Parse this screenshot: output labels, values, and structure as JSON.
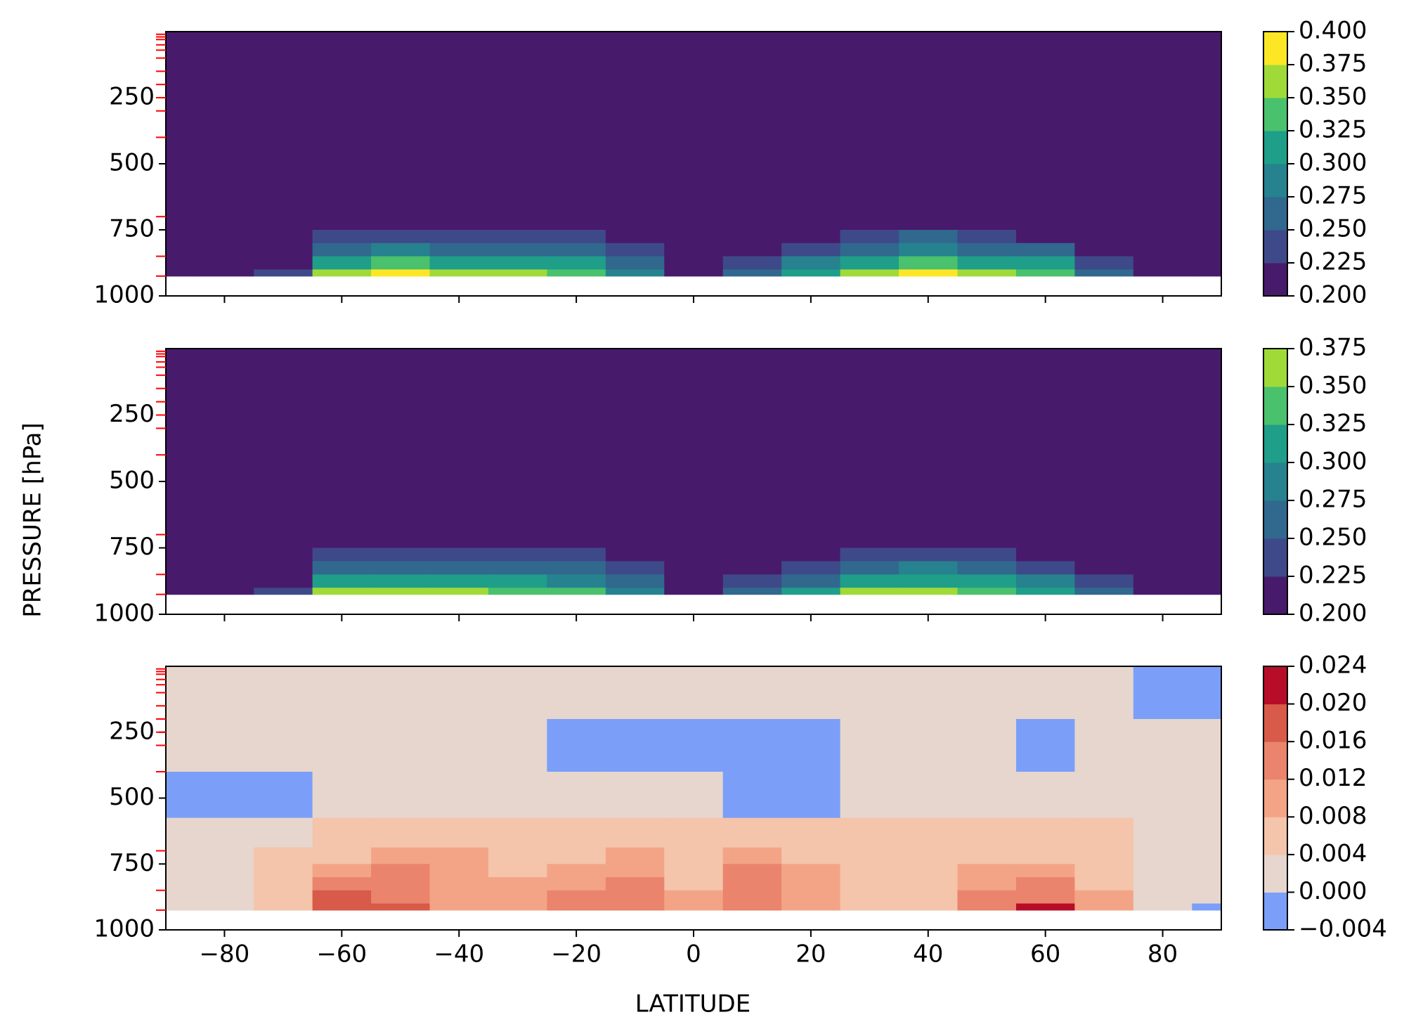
{
  "chart_data": [
    {
      "type": "contourf",
      "x": [
        -90,
        -80,
        -70,
        -60,
        -50,
        -40,
        -30,
        -20,
        -10,
        0,
        10,
        20,
        30,
        40,
        50,
        60,
        70,
        80,
        90
      ],
      "y": [
        100,
        300,
        500,
        650,
        725,
        775,
        825,
        875,
        925
      ],
      "z": [
        [
          0.2,
          0.2,
          0.2,
          0.2,
          0.2,
          0.2,
          0.2,
          0.2,
          0.2,
          0.2,
          0.2,
          0.2,
          0.2,
          0.2,
          0.2,
          0.2,
          0.2,
          0.2,
          0.2
        ],
        [
          0.2,
          0.2,
          0.2,
          0.2,
          0.2,
          0.2,
          0.2,
          0.2,
          0.2,
          0.2,
          0.2,
          0.2,
          0.2,
          0.2,
          0.2,
          0.2,
          0.2,
          0.2,
          0.2
        ],
        [
          0.2,
          0.2,
          0.2,
          0.2,
          0.2,
          0.2,
          0.2,
          0.2,
          0.2,
          0.2,
          0.2,
          0.2,
          0.2,
          0.2,
          0.2,
          0.2,
          0.2,
          0.2,
          0.2
        ],
        [
          0.2,
          0.2,
          0.2,
          0.2,
          0.2,
          0.2,
          0.2,
          0.2,
          0.2,
          0.2,
          0.2,
          0.2,
          0.2,
          0.2,
          0.2,
          0.2,
          0.2,
          0.2,
          0.2
        ],
        [
          0.2,
          0.2,
          0.2,
          0.21,
          0.21,
          0.21,
          0.21,
          0.21,
          0.2,
          0.2,
          0.2,
          0.21,
          0.21,
          0.21,
          0.21,
          0.21,
          0.2,
          0.2,
          0.2
        ],
        [
          0.2,
          0.2,
          0.2,
          0.23,
          0.24,
          0.24,
          0.23,
          0.23,
          0.22,
          0.2,
          0.21,
          0.22,
          0.24,
          0.25,
          0.23,
          0.22,
          0.21,
          0.2,
          0.2
        ],
        [
          0.2,
          0.2,
          0.21,
          0.26,
          0.28,
          0.27,
          0.26,
          0.26,
          0.24,
          0.21,
          0.22,
          0.24,
          0.27,
          0.29,
          0.27,
          0.25,
          0.22,
          0.21,
          0.2
        ],
        [
          0.2,
          0.2,
          0.22,
          0.31,
          0.33,
          0.32,
          0.31,
          0.3,
          0.26,
          0.22,
          0.24,
          0.28,
          0.32,
          0.34,
          0.32,
          0.3,
          0.24,
          0.21,
          0.2
        ],
        [
          0.2,
          0.2,
          0.23,
          0.37,
          0.39,
          0.37,
          0.35,
          0.34,
          0.29,
          0.22,
          0.26,
          0.31,
          0.37,
          0.39,
          0.37,
          0.34,
          0.26,
          0.21,
          0.2
        ]
      ],
      "levels": [
        {
          "value": 0.2,
          "label": "0.200"
        },
        {
          "value": 0.225,
          "label": "0.225"
        },
        {
          "value": 0.25,
          "label": "0.250"
        },
        {
          "value": 0.275,
          "label": "0.275"
        },
        {
          "value": 0.3,
          "label": "0.300"
        },
        {
          "value": 0.325,
          "label": "0.325"
        },
        {
          "value": 0.35,
          "label": "0.350"
        },
        {
          "value": 0.375,
          "label": "0.375"
        },
        {
          "value": 0.4,
          "label": "0.400"
        }
      ],
      "colors": [
        "#481a6c",
        "#3e4989",
        "#31688e",
        "#26828e",
        "#1f9e89",
        "#4ac16d",
        "#a0da39",
        "#fde725"
      ],
      "xlim": [
        -90,
        90
      ],
      "ylim": [
        1000,
        0
      ],
      "yticks": [
        250,
        500,
        750,
        1000
      ],
      "pressure_levels": [
        10,
        20,
        30,
        50,
        70,
        100,
        150,
        200,
        250,
        300,
        400,
        700,
        850,
        925
      ],
      "pressure_level_color": "#ff0000"
    },
    {
      "type": "contourf",
      "x": [
        -90,
        -80,
        -70,
        -60,
        -50,
        -40,
        -30,
        -20,
        -10,
        0,
        10,
        20,
        30,
        40,
        50,
        60,
        70,
        80,
        90
      ],
      "y": [
        100,
        300,
        500,
        650,
        725,
        775,
        825,
        875,
        925
      ],
      "z": [
        [
          0.2,
          0.2,
          0.2,
          0.2,
          0.2,
          0.2,
          0.2,
          0.2,
          0.2,
          0.2,
          0.2,
          0.2,
          0.2,
          0.2,
          0.2,
          0.2,
          0.2,
          0.2,
          0.2
        ],
        [
          0.2,
          0.2,
          0.2,
          0.2,
          0.2,
          0.2,
          0.2,
          0.2,
          0.2,
          0.2,
          0.2,
          0.2,
          0.2,
          0.2,
          0.2,
          0.2,
          0.2,
          0.2,
          0.2
        ],
        [
          0.2,
          0.2,
          0.2,
          0.2,
          0.2,
          0.2,
          0.2,
          0.2,
          0.2,
          0.2,
          0.2,
          0.2,
          0.2,
          0.2,
          0.2,
          0.2,
          0.2,
          0.2,
          0.2
        ],
        [
          0.2,
          0.2,
          0.2,
          0.2,
          0.2,
          0.2,
          0.2,
          0.2,
          0.2,
          0.2,
          0.2,
          0.2,
          0.2,
          0.2,
          0.2,
          0.2,
          0.2,
          0.2,
          0.2
        ],
        [
          0.2,
          0.2,
          0.2,
          0.21,
          0.21,
          0.21,
          0.21,
          0.21,
          0.2,
          0.2,
          0.2,
          0.21,
          0.21,
          0.21,
          0.21,
          0.21,
          0.2,
          0.2,
          0.2
        ],
        [
          0.2,
          0.2,
          0.2,
          0.23,
          0.24,
          0.24,
          0.23,
          0.23,
          0.22,
          0.2,
          0.21,
          0.22,
          0.24,
          0.24,
          0.23,
          0.22,
          0.21,
          0.2,
          0.2
        ],
        [
          0.2,
          0.2,
          0.21,
          0.26,
          0.27,
          0.27,
          0.26,
          0.25,
          0.23,
          0.21,
          0.22,
          0.24,
          0.27,
          0.28,
          0.26,
          0.24,
          0.22,
          0.21,
          0.2
        ],
        [
          0.2,
          0.2,
          0.22,
          0.3,
          0.32,
          0.31,
          0.3,
          0.29,
          0.25,
          0.21,
          0.23,
          0.27,
          0.31,
          0.32,
          0.3,
          0.28,
          0.23,
          0.21,
          0.2
        ],
        [
          0.2,
          0.2,
          0.23,
          0.35,
          0.36,
          0.36,
          0.34,
          0.33,
          0.28,
          0.21,
          0.25,
          0.3,
          0.35,
          0.36,
          0.34,
          0.32,
          0.25,
          0.21,
          0.2
        ]
      ],
      "levels": [
        {
          "value": 0.2,
          "label": "0.200"
        },
        {
          "value": 0.225,
          "label": "0.225"
        },
        {
          "value": 0.25,
          "label": "0.250"
        },
        {
          "value": 0.275,
          "label": "0.275"
        },
        {
          "value": 0.3,
          "label": "0.300"
        },
        {
          "value": 0.325,
          "label": "0.325"
        },
        {
          "value": 0.35,
          "label": "0.350"
        },
        {
          "value": 0.375,
          "label": "0.375"
        }
      ],
      "colors": [
        "#481a6c",
        "#3e4989",
        "#31688e",
        "#26828e",
        "#1f9e89",
        "#4ac16d",
        "#a0da39"
      ],
      "xlim": [
        -90,
        90
      ],
      "ylim": [
        1000,
        0
      ],
      "yticks": [
        250,
        500,
        750,
        1000
      ],
      "ylabel": "PRESSURE [hPa]",
      "pressure_levels": [
        10,
        20,
        30,
        50,
        70,
        100,
        150,
        200,
        250,
        300,
        400,
        700,
        850,
        925
      ],
      "pressure_level_color": "#ff0000"
    },
    {
      "type": "contourf",
      "x": [
        -90,
        -80,
        -70,
        -60,
        -50,
        -40,
        -30,
        -20,
        -10,
        0,
        10,
        20,
        30,
        40,
        50,
        60,
        70,
        80,
        90
      ],
      "y": [
        100,
        300,
        500,
        650,
        725,
        775,
        825,
        875,
        925
      ],
      "z": [
        [
          0.002,
          0.002,
          0.002,
          0.002,
          0.002,
          0.002,
          0.002,
          0.002,
          0.001,
          0.001,
          0.001,
          0.002,
          0.002,
          0.002,
          0.002,
          0.002,
          0.002,
          -0.001,
          -0.001
        ],
        [
          0.001,
          0.002,
          0.002,
          0.002,
          0.002,
          0.002,
          0.002,
          -0.001,
          -0.001,
          -0.001,
          -0.001,
          -0.001,
          0.002,
          0.002,
          0.002,
          -0.001,
          0.002,
          0.002,
          0.002
        ],
        [
          -0.001,
          -0.001,
          -0.001,
          0.002,
          0.002,
          0.002,
          0.002,
          0.002,
          0.002,
          0.002,
          -0.001,
          -0.001,
          0.002,
          0.002,
          0.002,
          0.002,
          0.002,
          0.002,
          0.002
        ],
        [
          0.002,
          0.002,
          0.002,
          0.005,
          0.006,
          0.006,
          0.005,
          0.005,
          0.005,
          0.006,
          0.006,
          0.005,
          0.004,
          0.005,
          0.005,
          0.005,
          0.004,
          0.002,
          0.002
        ],
        [
          0.002,
          0.002,
          0.004,
          0.006,
          0.009,
          0.009,
          0.006,
          0.006,
          0.008,
          0.006,
          0.011,
          0.007,
          0.005,
          0.005,
          0.006,
          0.006,
          0.005,
          0.002,
          0.002
        ],
        [
          0.002,
          0.002,
          0.005,
          0.01,
          0.013,
          0.01,
          0.007,
          0.009,
          0.01,
          0.006,
          0.013,
          0.008,
          0.005,
          0.005,
          0.008,
          0.009,
          0.006,
          0.002,
          0.002
        ],
        [
          0.002,
          0.002,
          0.005,
          0.014,
          0.014,
          0.01,
          0.008,
          0.011,
          0.013,
          0.007,
          0.014,
          0.009,
          0.006,
          0.006,
          0.01,
          0.012,
          0.007,
          0.002,
          0.002
        ],
        [
          0.002,
          0.002,
          0.005,
          0.017,
          0.015,
          0.01,
          0.009,
          0.013,
          0.014,
          0.008,
          0.015,
          0.009,
          0.006,
          0.007,
          0.012,
          0.015,
          0.008,
          0.002,
          0.002
        ],
        [
          0.002,
          0.002,
          0.004,
          0.018,
          0.016,
          0.01,
          0.009,
          0.014,
          0.013,
          0.008,
          0.013,
          0.009,
          0.006,
          0.007,
          0.013,
          0.02,
          0.009,
          0.002,
          -0.001
        ]
      ],
      "levels": [
        {
          "value": -0.004,
          "label": "−0.004"
        },
        {
          "value": 0,
          "label": "0.000"
        },
        {
          "value": 0.004,
          "label": "0.004"
        },
        {
          "value": 0.008,
          "label": "0.008"
        },
        {
          "value": 0.012,
          "label": "0.012"
        },
        {
          "value": 0.016,
          "label": "0.016"
        },
        {
          "value": 0.02,
          "label": "0.020"
        },
        {
          "value": 0.024,
          "label": "0.024"
        }
      ],
      "colors": [
        "#7b9ff9",
        "#e6d6cd",
        "#f4c4ab",
        "#f4a486",
        "#ea846c",
        "#d85a48",
        "#b70d28"
      ],
      "xlim": [
        -90,
        90
      ],
      "ylim": [
        1000,
        0
      ],
      "yticks": [
        250,
        500,
        750,
        1000
      ],
      "xticks": [
        {
          "value": -80,
          "label": "−80"
        },
        {
          "value": -60,
          "label": "−60"
        },
        {
          "value": -40,
          "label": "−40"
        },
        {
          "value": -20,
          "label": "−20"
        },
        0,
        20,
        40,
        60,
        80
      ],
      "xlabel": "LATITUDE",
      "pressure_levels": [
        10,
        20,
        30,
        50,
        70,
        100,
        150,
        200,
        250,
        300,
        400,
        700,
        850,
        925
      ],
      "pressure_level_color": "#ff0000"
    }
  ]
}
